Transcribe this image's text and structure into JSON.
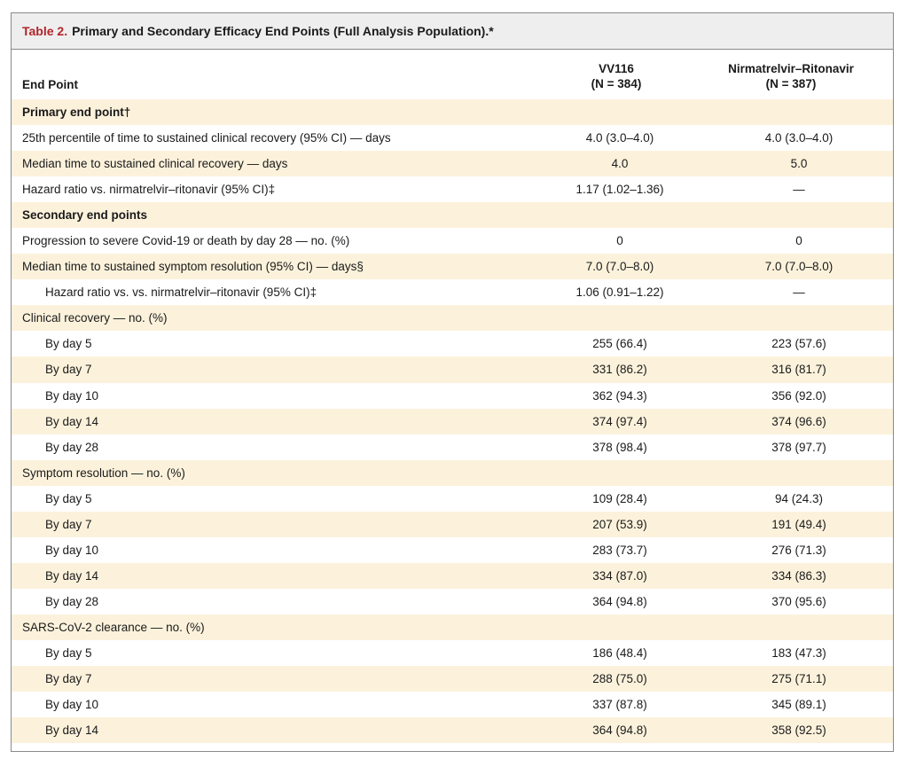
{
  "caption": {
    "label": "Table 2.",
    "title": "Primary and Secondary Efficacy End Points (Full Analysis Population).*"
  },
  "header": {
    "endpoint": "End Point",
    "col_a_name": "VV116",
    "col_a_n": "(N = 384)",
    "col_b_name": "Nirmatrelvir–Ritonavir",
    "col_b_n": "(N = 387)"
  },
  "rows": [
    {
      "label": "Primary end point†",
      "a": "",
      "b": "",
      "type": "section"
    },
    {
      "label": "25th percentile of time to sustained clinical recovery (95% CI) — days",
      "a": "4.0 (3.0–4.0)",
      "b": "4.0 (3.0–4.0)",
      "type": "normal"
    },
    {
      "label": "Median time to sustained clinical recovery — days",
      "a": "4.0",
      "b": "5.0",
      "type": "normal"
    },
    {
      "label": "Hazard ratio vs. nirmatrelvir–ritonavir (95% CI)‡",
      "a": "1.17 (1.02–1.36)",
      "b": "—",
      "type": "normal"
    },
    {
      "label": "Secondary end points",
      "a": "",
      "b": "",
      "type": "section"
    },
    {
      "label": "Progression to severe Covid-19 or death by day 28 — no. (%)",
      "a": "0",
      "b": "0",
      "type": "normal"
    },
    {
      "label": "Median time to sustained symptom resolution (95% CI) — days§",
      "a": "7.0 (7.0–8.0)",
      "b": "7.0 (7.0–8.0)",
      "type": "normal"
    },
    {
      "label": "Hazard ratio vs. vs. nirmatrelvir–ritonavir (95% CI)‡",
      "a": "1.06 (0.91–1.22)",
      "b": "—",
      "type": "indent"
    },
    {
      "label": "Clinical recovery — no. (%)",
      "a": "",
      "b": "",
      "type": "normal"
    },
    {
      "label": "By day 5",
      "a": "255 (66.4)",
      "b": "223 (57.6)",
      "type": "indent"
    },
    {
      "label": "By day 7",
      "a": "331 (86.2)",
      "b": "316 (81.7)",
      "type": "indent"
    },
    {
      "label": "By day 10",
      "a": "362 (94.3)",
      "b": "356 (92.0)",
      "type": "indent"
    },
    {
      "label": "By day 14",
      "a": "374 (97.4)",
      "b": "374 (96.6)",
      "type": "indent"
    },
    {
      "label": "By day 28",
      "a": "378 (98.4)",
      "b": "378 (97.7)",
      "type": "indent"
    },
    {
      "label": "Symptom resolution — no. (%)",
      "a": "",
      "b": "",
      "type": "normal"
    },
    {
      "label": "By day 5",
      "a": "109 (28.4)",
      "b": "94 (24.3)",
      "type": "indent"
    },
    {
      "label": "By day 7",
      "a": "207 (53.9)",
      "b": "191 (49.4)",
      "type": "indent"
    },
    {
      "label": "By day 10",
      "a": "283 (73.7)",
      "b": "276 (71.3)",
      "type": "indent"
    },
    {
      "label": "By day 14",
      "a": "334 (87.0)",
      "b": "334 (86.3)",
      "type": "indent"
    },
    {
      "label": "By day 28",
      "a": "364 (94.8)",
      "b": "370 (95.6)",
      "type": "indent"
    },
    {
      "label": "SARS-CoV-2 clearance — no. (%)",
      "a": "",
      "b": "",
      "type": "normal"
    },
    {
      "label": "By day 5",
      "a": "186 (48.4)",
      "b": "183 (47.3)",
      "type": "indent"
    },
    {
      "label": "By day 7",
      "a": "288 (75.0)",
      "b": "275 (71.1)",
      "type": "indent"
    },
    {
      "label": "By day 10",
      "a": "337 (87.8)",
      "b": "345 (89.1)",
      "type": "indent"
    },
    {
      "label": "By day 14",
      "a": "364 (94.8)",
      "b": "358 (92.5)",
      "type": "indent"
    }
  ],
  "colors": {
    "caption_label": "#b3242b",
    "caption_bg": "#eeeeee",
    "shaded_row": "#fcf2dc",
    "border": "#8a8a8a"
  }
}
